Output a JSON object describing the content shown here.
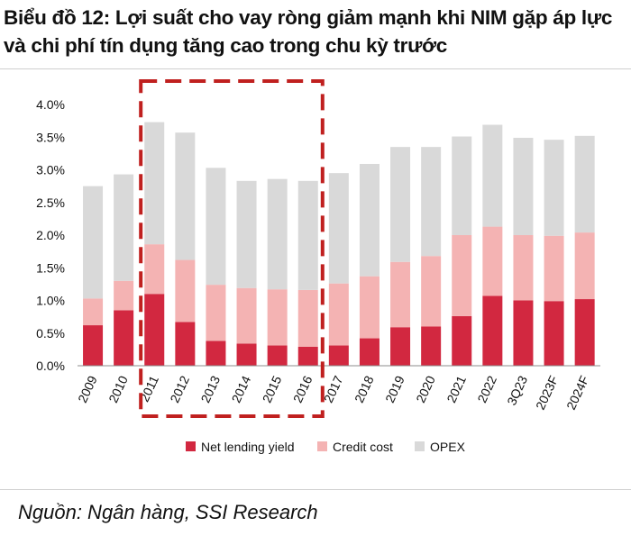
{
  "header": {
    "title_line1": "Biểu đồ 12: Lợi suất cho vay ròng giảm mạnh khi NIM gặp áp lực",
    "title_line2": "và chi phí tín dụng tăng cao trong chu kỳ trước"
  },
  "footer": {
    "source": "Nguồn: Ngân hàng, SSI Research"
  },
  "chart_data": {
    "type": "bar",
    "stacked": true,
    "categories": [
      "2009",
      "2010",
      "2011",
      "2012",
      "2013",
      "2014",
      "2015",
      "2016",
      "2017",
      "2018",
      "2019",
      "2020",
      "2021",
      "2022",
      "3Q23",
      "2023F",
      "2024F"
    ],
    "series": [
      {
        "name": "Net lending yield",
        "color": "#d22840",
        "values": [
          0.62,
          0.85,
          1.1,
          0.67,
          0.38,
          0.34,
          0.31,
          0.29,
          0.31,
          0.42,
          0.59,
          0.6,
          0.76,
          1.07,
          1.0,
          0.99,
          1.02
        ]
      },
      {
        "name": "Credit cost",
        "color": "#f4b3b3",
        "values": [
          0.41,
          0.45,
          0.76,
          0.95,
          0.86,
          0.85,
          0.86,
          0.87,
          0.95,
          0.95,
          1.0,
          1.08,
          1.24,
          1.06,
          1.0,
          1.0,
          1.02
        ]
      },
      {
        "name": "OPEX",
        "color": "#d9d9d9",
        "values": [
          1.72,
          1.63,
          1.87,
          1.95,
          1.79,
          1.64,
          1.69,
          1.67,
          1.69,
          1.72,
          1.76,
          1.67,
          1.51,
          1.56,
          1.49,
          1.47,
          1.48
        ]
      }
    ],
    "ylim": [
      0,
      4.0
    ],
    "yticks": [
      "0.0%",
      "0.5%",
      "1.0%",
      "1.5%",
      "2.0%",
      "2.5%",
      "3.0%",
      "3.5%",
      "4.0%"
    ],
    "legend_position": "bottom",
    "highlight": {
      "from_category": "2011",
      "to_category": "2016",
      "style": "dashed",
      "color": "#c0201f"
    }
  }
}
